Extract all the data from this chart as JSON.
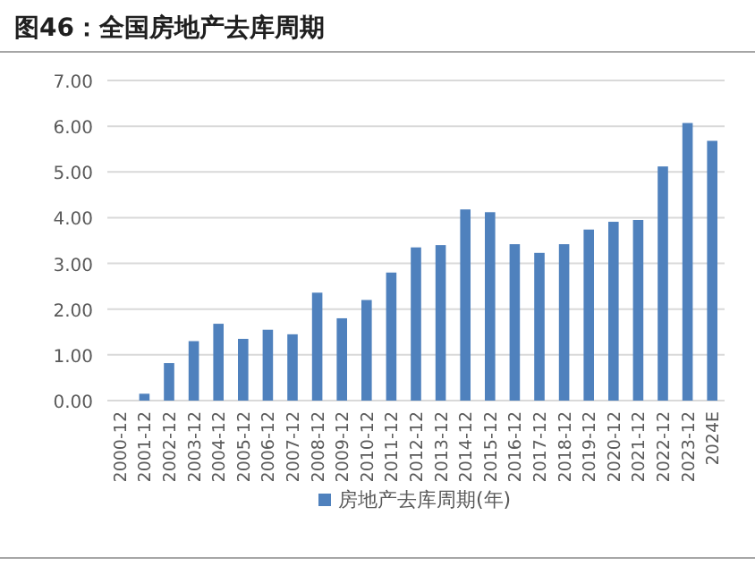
{
  "chart_data": {
    "type": "bar",
    "title": "图46：全国房地产去库周期",
    "categories": [
      "2000-12",
      "2001-12",
      "2002-12",
      "2003-12",
      "2004-12",
      "2005-12",
      "2006-12",
      "2007-12",
      "2008-12",
      "2009-12",
      "2010-12",
      "2011-12",
      "2012-12",
      "2013-12",
      "2014-12",
      "2015-12",
      "2016-12",
      "2017-12",
      "2018-12",
      "2019-12",
      "2020-12",
      "2021-12",
      "2022-12",
      "2023-12",
      "2024E"
    ],
    "series": [
      {
        "name": "房地产去库周期(年)",
        "color": "#4f81bd",
        "values": [
          null,
          0.15,
          0.82,
          1.3,
          1.68,
          1.35,
          1.55,
          1.45,
          2.36,
          1.8,
          2.2,
          2.8,
          3.35,
          3.4,
          4.18,
          4.12,
          3.42,
          3.23,
          3.42,
          3.74,
          3.91,
          3.95,
          5.12,
          6.07,
          5.68
        ]
      }
    ],
    "ylim": [
      0,
      7
    ],
    "yticks": [
      {
        "value": 0,
        "label": "0.00"
      },
      {
        "value": 1,
        "label": "1.00"
      },
      {
        "value": 2,
        "label": "2.00"
      },
      {
        "value": 3,
        "label": "3.00"
      },
      {
        "value": 4,
        "label": "4.00"
      },
      {
        "value": 5,
        "label": "5.00"
      },
      {
        "value": 6,
        "label": "6.00"
      },
      {
        "value": 7,
        "label": "7.00"
      }
    ],
    "grid": "y",
    "legend": "bottom"
  }
}
